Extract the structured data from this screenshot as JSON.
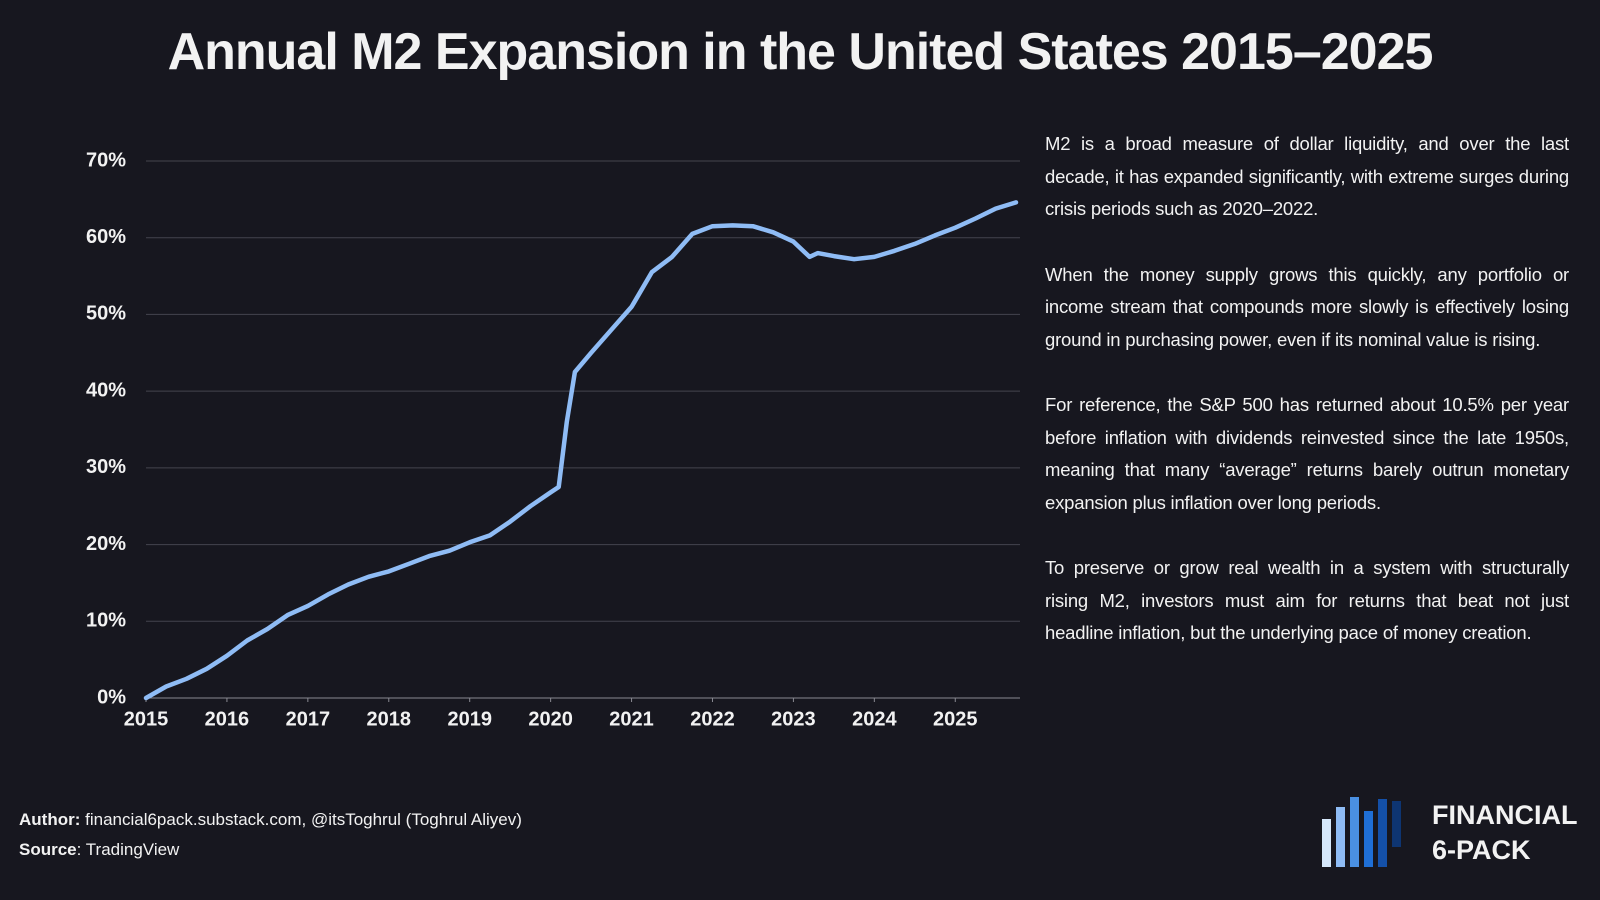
{
  "chart_data": {
    "type": "line",
    "title": "Annual M2 Expansion in the United States 2015–2025",
    "x": [
      2015,
      2015.25,
      2015.5,
      2015.75,
      2016,
      2016.25,
      2016.5,
      2016.75,
      2017,
      2017.25,
      2017.5,
      2017.75,
      2018,
      2018.25,
      2018.5,
      2018.75,
      2019,
      2019.25,
      2019.5,
      2019.75,
      2020,
      2020.1,
      2020.2,
      2020.3,
      2020.5,
      2020.75,
      2021,
      2021.25,
      2021.5,
      2021.75,
      2022,
      2022.25,
      2022.5,
      2022.75,
      2023,
      2023.2,
      2023.3,
      2023.5,
      2023.75,
      2024,
      2024.25,
      2024.5,
      2024.75,
      2025,
      2025.25,
      2025.5,
      2025.75
    ],
    "series": [
      {
        "name": "M2 expansion",
        "color": "#8fbcf5",
        "values": [
          0,
          1.5,
          2.5,
          3.8,
          5.5,
          7.5,
          9,
          10.8,
          12,
          13.5,
          14.8,
          15.8,
          16.5,
          17.5,
          18.5,
          19.2,
          20.3,
          21.2,
          23,
          25,
          26.8,
          27.5,
          36,
          42.5,
          45,
          48,
          51,
          55.5,
          57.5,
          60.5,
          61.5,
          61.6,
          61.5,
          60.7,
          59.5,
          57.5,
          58,
          57.6,
          57.2,
          57.5,
          58.3,
          59.2,
          60.3,
          61.3,
          62.5,
          63.8,
          64.6
        ]
      }
    ],
    "xlim": [
      2015,
      2025.8
    ],
    "xticks": [
      2015,
      2016,
      2017,
      2018,
      2019,
      2020,
      2021,
      2022,
      2023,
      2024,
      2025
    ],
    "ylim": [
      0,
      70
    ],
    "yticks": [
      {
        "value": 0,
        "label": "0%"
      },
      {
        "value": 10,
        "label": "10%"
      },
      {
        "value": 20,
        "label": "20%"
      },
      {
        "value": 30,
        "label": "30%"
      },
      {
        "value": 40,
        "label": "40%"
      },
      {
        "value": 50,
        "label": "50%"
      },
      {
        "value": 60,
        "label": "60%"
      },
      {
        "value": 70,
        "label": "70%"
      }
    ],
    "grid": true
  },
  "commentary": {
    "paragraphs": [
      "M2 is a broad measure of dollar liquidity, and over the last decade, it has expanded significantly, with extreme surges during crisis periods such as 2020–2022.",
      "When the money supply grows this quickly, any portfolio or income stream that compounds more slowly is effectively losing ground in purchasing power, even if its nominal value is rising.",
      "For reference, the S&P 500 has returned about 10.5% per year before inflation with dividends reinvested since the late 1950s, meaning that many “average” returns barely outrun monetary expansion plus inflation over long periods.",
      "To preserve or grow real wealth in a system with structurally rising M2, investors must aim for returns that beat not just headline inflation, but the underlying pace of money creation."
    ]
  },
  "footer": {
    "author_label": "Author:",
    "author": "financial6pack.substack.com, @itsToghrul (Toghrul Aliyev)",
    "source_label": "Source",
    "source": ": TradingView"
  },
  "logo": {
    "line1": "FINANCIAL",
    "line2": "6-PACK"
  }
}
